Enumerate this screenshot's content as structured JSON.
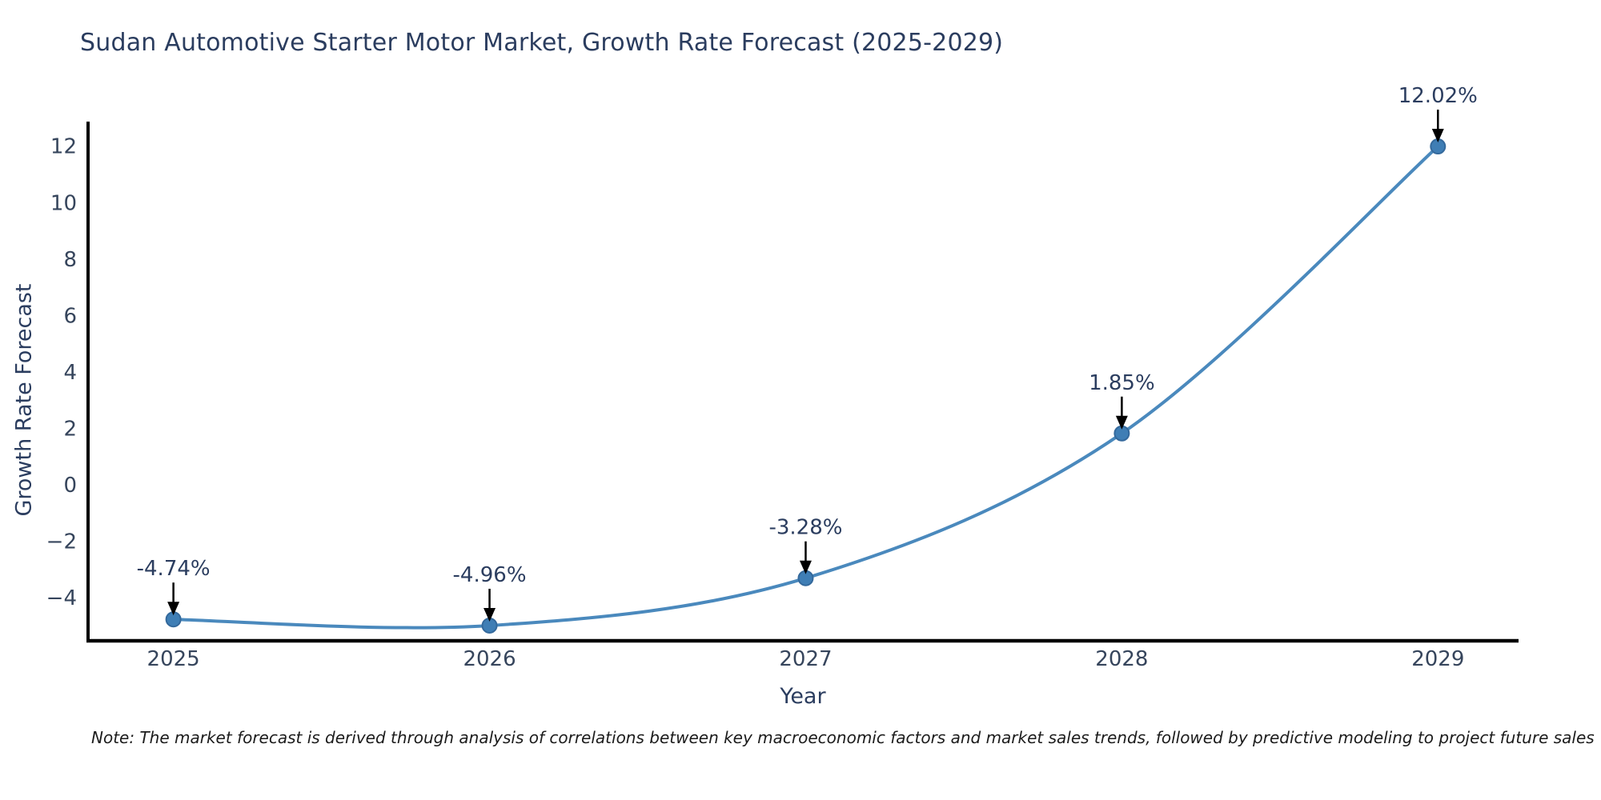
{
  "chart_data": {
    "type": "line",
    "title": "Sudan Automotive Starter Motor Market, Growth Rate Forecast (2025-2029)",
    "xlabel": "Year",
    "ylabel": "Growth Rate Forecast",
    "x": [
      2025,
      2026,
      2027,
      2028,
      2029
    ],
    "values": [
      -4.74,
      -4.96,
      -3.28,
      1.85,
      12.02
    ],
    "point_labels": [
      "-4.74%",
      "-4.96%",
      "-3.28%",
      "1.85%",
      "12.02%"
    ],
    "x_tick_labels": [
      "2025",
      "2026",
      "2027",
      "2028",
      "2029"
    ],
    "y_ticks": [
      -4,
      -2,
      0,
      2,
      4,
      6,
      8,
      10,
      12
    ],
    "y_tick_labels": [
      "−4",
      "−2",
      "0",
      "2",
      "4",
      "6",
      "8",
      "10",
      "12"
    ],
    "xlim": [
      2024.73,
      2029.255
    ],
    "ylim": [
      -5.5,
      12.9
    ],
    "grid": false,
    "line_color": "#4a89bd",
    "marker_color": "#3f7eb5",
    "marker_edge_color": "#34699c",
    "axis_color": "#000000",
    "tick_color": "#36455c",
    "annotation_color": "#2b3d5f",
    "arrow_color": "#000000",
    "note": "Note: The market forecast is derived through analysis of correlations between key macroeconomic factors and market sales trends, followed by predictive modeling to project future sales"
  }
}
